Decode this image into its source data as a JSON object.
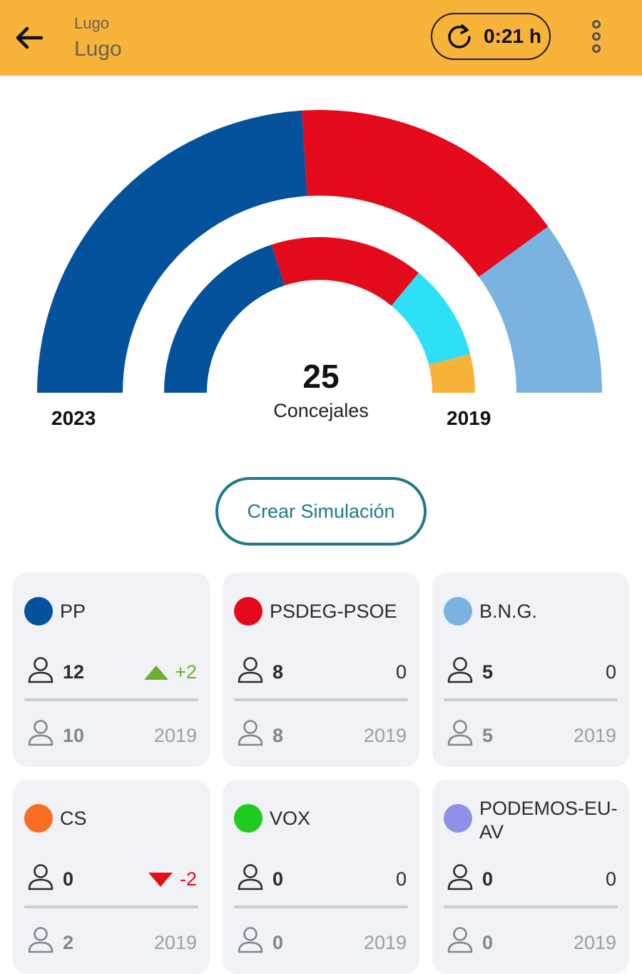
{
  "header": {
    "crumb_small": "Lugo",
    "crumb_big": "Lugo",
    "timer": "0:21 h"
  },
  "chart_data": {
    "type": "pie",
    "total": "25",
    "total_label": "Concejales",
    "outer_label": "2023",
    "inner_label": "2019",
    "outer_seats": [
      {
        "party": "PP",
        "seats": 12,
        "color": "#05529c"
      },
      {
        "party": "PSDEG-PSOE",
        "seats": 8,
        "color": "#e30a1b"
      },
      {
        "party": "B.N.G.",
        "seats": 5,
        "color": "#7ab2e0"
      }
    ],
    "inner_seats": [
      {
        "party": "PP",
        "seats": 10,
        "color": "#05529c"
      },
      {
        "party": "PSDEG-PSOE",
        "seats": 8,
        "color": "#e30a1b"
      },
      {
        "party": "B.N.G.",
        "seats": 5,
        "color": "#2de0f5"
      },
      {
        "party": "CS",
        "seats": 2,
        "color": "#f7b33a"
      }
    ]
  },
  "simulate_label": "Crear Simulación",
  "parties": [
    {
      "name": "PP",
      "color": "#05529c",
      "seats": "12",
      "delta": "+2",
      "trend": "up",
      "prev": "10",
      "prev_year": "2019"
    },
    {
      "name": "PSDEG-PSOE",
      "color": "#e30a1b",
      "seats": "8",
      "delta": "0",
      "trend": "flat",
      "prev": "8",
      "prev_year": "2019"
    },
    {
      "name": "B.N.G.",
      "color": "#7ab2e0",
      "seats": "5",
      "delta": "0",
      "trend": "flat",
      "prev": "5",
      "prev_year": "2019"
    },
    {
      "name": "CS",
      "color": "#f86f24",
      "seats": "0",
      "delta": "-2",
      "trend": "down",
      "prev": "2",
      "prev_year": "2019"
    },
    {
      "name": "VOX",
      "color": "#1ecb1e",
      "seats": "0",
      "delta": "0",
      "trend": "flat",
      "prev": "0",
      "prev_year": "2019"
    },
    {
      "name": "PODEMOS-EU-AV",
      "name_line1": "PODEMOS-EU-",
      "name_line2": "AV",
      "color": "#8f91e6",
      "seats": "0",
      "delta": "0",
      "trend": "flat",
      "prev": "0",
      "prev_year": "2019"
    }
  ]
}
